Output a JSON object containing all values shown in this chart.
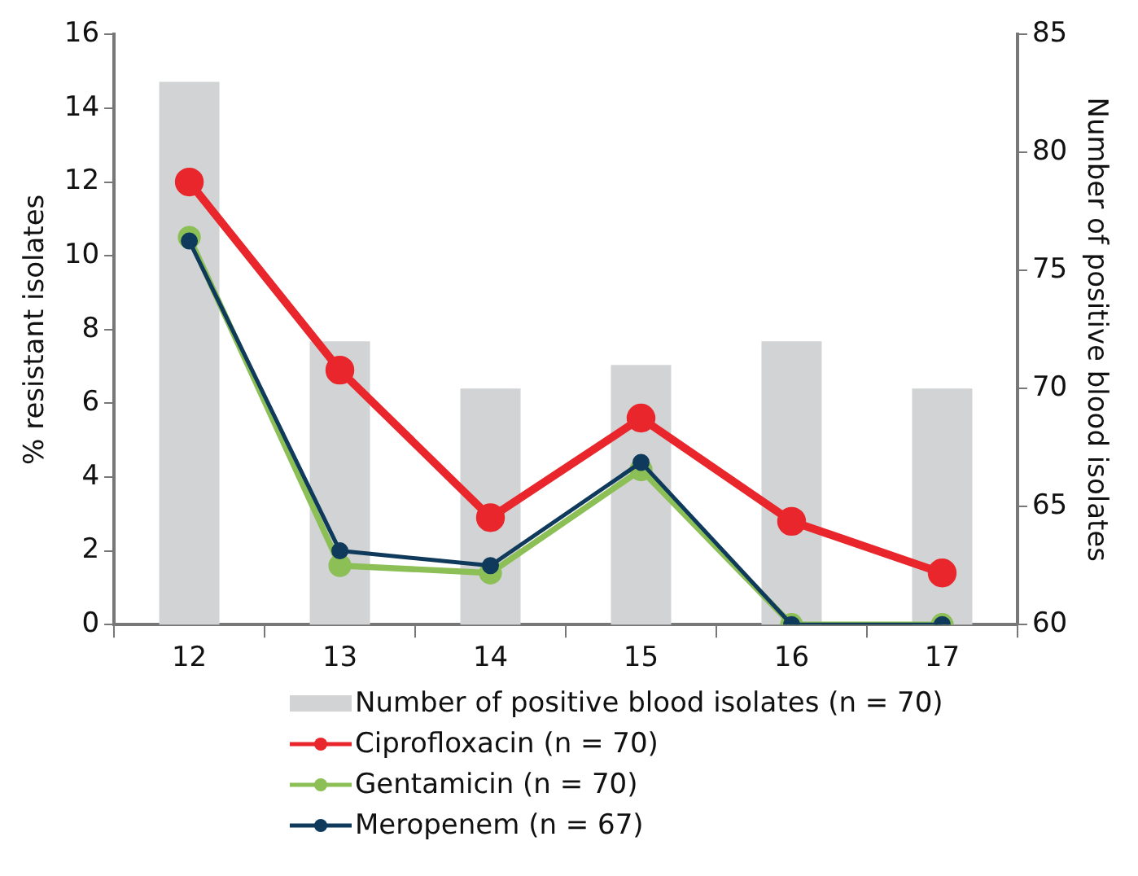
{
  "chart_data": {
    "type": "line",
    "categories": [
      "12",
      "13",
      "14",
      "15",
      "16",
      "17"
    ],
    "ylabel": "% resistant isolates",
    "y2label": "Number of positive blood isolates",
    "ylim": [
      0,
      16
    ],
    "yticks": [
      0,
      2,
      4,
      6,
      8,
      10,
      12,
      14,
      16
    ],
    "y2lim": [
      60,
      85
    ],
    "y2ticks": [
      60,
      65,
      70,
      75,
      80,
      85
    ],
    "grid": false,
    "legend": "bottom",
    "marker": "circle",
    "series": [
      {
        "name": "Number of positive blood isolates (n = 70)",
        "type": "bar",
        "axis": "y2",
        "color": "#d1d3d4",
        "values": [
          83,
          72,
          70,
          71,
          72,
          70
        ]
      },
      {
        "name": "Ciprofloxacin (n = 70)",
        "color": "#e8262b",
        "values": [
          12.0,
          6.9,
          2.9,
          5.6,
          2.8,
          1.4
        ]
      },
      {
        "name": "Gentamicin (n = 70)",
        "color": "#8cbf55",
        "values": [
          10.5,
          1.6,
          1.4,
          4.2,
          0,
          0
        ]
      },
      {
        "name": "Meropenem (n = 67)",
        "color": "#0f3a5c",
        "values": [
          10.4,
          2.0,
          1.6,
          4.4,
          0,
          0
        ]
      }
    ]
  }
}
